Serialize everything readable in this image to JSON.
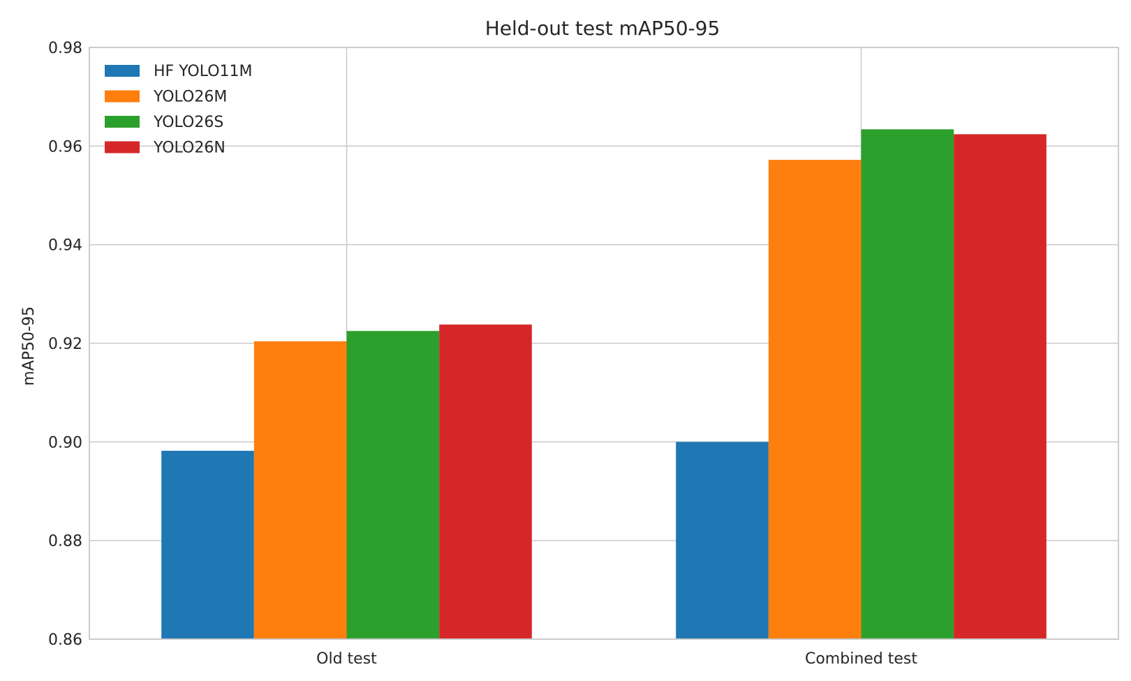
{
  "chart_data": {
    "type": "bar",
    "title": "Held-out test mAP50-95",
    "xlabel": "",
    "ylabel": "mAP50-95",
    "categories": [
      "Old test",
      "Combined test"
    ],
    "series": [
      {
        "name": "HF YOLO11M",
        "color": "#1f77b4",
        "values": [
          0.8982,
          0.9
        ]
      },
      {
        "name": "YOLO26M",
        "color": "#ff7f0e",
        "values": [
          0.9204,
          0.9572
        ]
      },
      {
        "name": "YOLO26S",
        "color": "#2ca02c",
        "values": [
          0.9225,
          0.9634
        ]
      },
      {
        "name": "YOLO26N",
        "color": "#d62728",
        "values": [
          0.9238,
          0.9624
        ]
      }
    ],
    "ylim": [
      0.86,
      0.98
    ],
    "yticks": [
      "0.86",
      "0.88",
      "0.90",
      "0.92",
      "0.94",
      "0.96",
      "0.98"
    ],
    "grid": true,
    "legend_position": "top-left"
  }
}
